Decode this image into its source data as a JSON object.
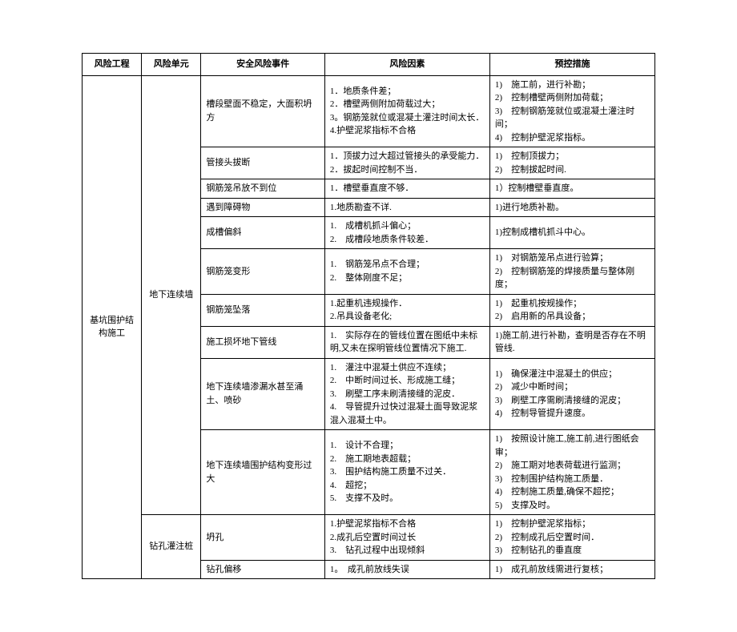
{
  "headers": {
    "project": "风险工程",
    "unit": "风险单元",
    "event": "安全风险事件",
    "factor": "风险因素",
    "measure": "预控措施"
  },
  "project": "基坑围护结构施工",
  "unit1": "地下连续墙",
  "unit2": "钻孔灌注桩",
  "rows": [
    {
      "event": "槽段壁面不稳定，大面积坍方",
      "factors": [
        "1．地质条件差；",
        "2．槽壁两侧附加荷载过大；",
        "3。钢筋笼就位或混凝土灌注时间太长．",
        "4.护壁泥浆指标不合格"
      ],
      "measures": [
        "1)　施工前，进行补勘；",
        "2)　控制槽壁两侧附加荷载；",
        "3)　控制钢筋笼就位或混凝土灌注时间；",
        "4)　控制护壁泥浆指标。"
      ]
    },
    {
      "event": "管接头拔断",
      "factors": [
        "1．顶拔力过大超过管接头的承受能力．",
        "2．拔起时间控制不当．"
      ],
      "measures": [
        "1)　控制顶拔力；",
        "2)　控制拔起时间."
      ]
    },
    {
      "event": "钢筋笼吊放不到位",
      "factors": [
        "1．槽壁垂直度不够．"
      ],
      "measures": [
        "1）控制槽壁垂直度。"
      ]
    },
    {
      "event": "遇到障碍物",
      "factors": [
        "1.地质勘查不详."
      ],
      "measures": [
        "1)进行地质补勘。"
      ]
    },
    {
      "event": "成槽偏斜",
      "factors": [
        "1.　成槽机抓斗偏心；",
        "2.　成槽段地质条件较差．"
      ],
      "measures": [
        "1)控制成槽机抓斗中心。"
      ]
    },
    {
      "event": "钢筋笼变形",
      "factors": [
        "1.　钢筋笼吊点不合理；",
        "2.　整体刚度不足；"
      ],
      "measures": [
        "1)　对钢筋笼吊点进行验算；",
        "2)　控制钢筋笼的焊接质量与整体刚度；"
      ]
    },
    {
      "event": "钢筋笼坠落",
      "factors": [
        "1.起重机违规操作．",
        "2.吊具设备老化;"
      ],
      "measures": [
        "1)　起重机按规操作；",
        "2)　启用新的吊具设备；"
      ]
    },
    {
      "event": "施工损坏地下管线",
      "factors": [
        "1.　实际存在的管线位置在图纸中未标明,又未在探明管线位置情况下施工."
      ],
      "measures": [
        "1)施工前,进行补勘，查明是否存在不明管线."
      ]
    },
    {
      "event": "地下连续墙渗漏水甚至涌土、喷砂",
      "factors": [
        "1.　灌注中混凝土供应不连续；",
        "2.　中断时间过长、形成施工缝；",
        "3.　刷壁工序未刷清接缝的泥皮．",
        "4.　导管提升过快过混凝土面导致泥浆混入混凝土中。"
      ],
      "measures": [
        "1)　确保灌注中混凝土的供应；",
        "2)　减少中断时间；",
        "3)　刷壁工序需刷清接缝的泥皮；",
        "4)　控制导管提升速度。"
      ]
    },
    {
      "event": "地下连续墙围护结构变形过大",
      "factors": [
        "1.　设计不合理；",
        "2.　施工期地表超载；",
        "3.　围护结构施工质量不过关．",
        "4.　超挖；",
        "5.　支撑不及时。"
      ],
      "measures": [
        "1)　按照设计施工,施工前,进行图纸会审；",
        "2)　施工期对地表荷载进行监测；",
        "3)　控制围护结构施工质量．",
        "4)　控制施工质量,确保不超挖；",
        "5)　支撑及时。"
      ]
    },
    {
      "event": "坍孔",
      "factors": [
        "1.护壁泥浆指标不合格",
        "2.成孔后空置时间过长",
        "3.　钻孔过程中出现倾斜"
      ],
      "measures": [
        "1)　控制护壁泥浆指标；",
        "2)　控制成孔后空置时间．",
        "3)　控制钻孔的垂直度"
      ]
    },
    {
      "event": "钻孔偏移",
      "factors": [
        "1。　成孔前放线失误"
      ],
      "measures": [
        "1)　成孔前放线需进行复核；"
      ]
    }
  ]
}
